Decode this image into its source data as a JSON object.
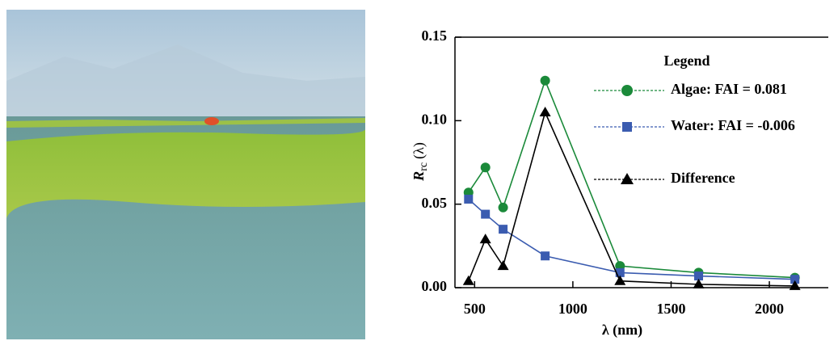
{
  "chart_data": {
    "type": "line",
    "xlabel": "λ (nm)",
    "ylabel": {
      "main": "R",
      "sub": "rc",
      "rest": "(λ)"
    },
    "legend_title": "Legend",
    "x": [
      469,
      555,
      645,
      859,
      1240,
      1640,
      2130
    ],
    "series": [
      {
        "name": "Algae: FAI = 0.081",
        "color": "#1b8a3a",
        "marker": "circle",
        "values": [
          0.057,
          0.072,
          0.048,
          0.124,
          0.013,
          0.009,
          0.006
        ]
      },
      {
        "name": "Water: FAI = -0.006",
        "color": "#3b5cb0",
        "marker": "square",
        "values": [
          0.053,
          0.044,
          0.035,
          0.019,
          0.009,
          0.007,
          0.005
        ]
      },
      {
        "name": "Difference",
        "color": "#000000",
        "marker": "triangle",
        "values": [
          0.004,
          0.029,
          0.013,
          0.105,
          0.004,
          0.002,
          0.001
        ]
      }
    ],
    "xlim": [
      400,
      2300
    ],
    "ylim": [
      0,
      0.15
    ],
    "xticks": [
      500,
      1000,
      1500,
      2000
    ],
    "yticks": [
      {
        "value": 0,
        "label": "0.00"
      },
      {
        "value": 0.05,
        "label": "0.05"
      },
      {
        "value": 0.1,
        "label": "0.10"
      },
      {
        "value": 0.15,
        "label": "0.15"
      }
    ]
  }
}
